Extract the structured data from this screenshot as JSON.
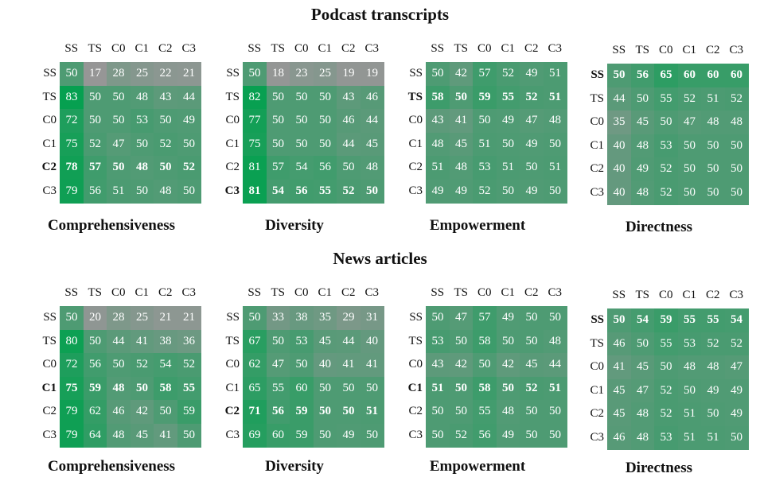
{
  "chart_data": {
    "sections": [
      {
        "title": "Podcast transcripts",
        "charts": [
          {
            "type": "heatmap",
            "title": "Comprehensiveness",
            "labels": [
              "SS",
              "TS",
              "C0",
              "C1",
              "C2",
              "C3"
            ],
            "bold_row": 4,
            "values": [
              [
                50,
                17,
                28,
                25,
                22,
                21
              ],
              [
                83,
                50,
                50,
                48,
                43,
                44
              ],
              [
                72,
                50,
                50,
                53,
                50,
                49
              ],
              [
                75,
                52,
                47,
                50,
                52,
                50
              ],
              [
                78,
                57,
                50,
                48,
                50,
                52
              ],
              [
                79,
                56,
                51,
                50,
                48,
                50
              ]
            ]
          },
          {
            "type": "heatmap",
            "title": "Diversity",
            "labels": [
              "SS",
              "TS",
              "C0",
              "C1",
              "C2",
              "C3"
            ],
            "bold_row": 5,
            "values": [
              [
                50,
                18,
                23,
                25,
                19,
                19
              ],
              [
                82,
                50,
                50,
                50,
                43,
                46
              ],
              [
                77,
                50,
                50,
                50,
                46,
                44
              ],
              [
                75,
                50,
                50,
                50,
                44,
                45
              ],
              [
                81,
                57,
                54,
                56,
                50,
                48
              ],
              [
                81,
                54,
                56,
                55,
                52,
                50
              ]
            ]
          },
          {
            "type": "heatmap",
            "title": "Empowerment",
            "labels": [
              "SS",
              "TS",
              "C0",
              "C1",
              "C2",
              "C3"
            ],
            "bold_row": 1,
            "values": [
              [
                50,
                42,
                57,
                52,
                49,
                51
              ],
              [
                58,
                50,
                59,
                55,
                52,
                51
              ],
              [
                43,
                41,
                50,
                49,
                47,
                48
              ],
              [
                48,
                45,
                51,
                50,
                49,
                50
              ],
              [
                51,
                48,
                53,
                51,
                50,
                51
              ],
              [
                49,
                49,
                52,
                50,
                49,
                50
              ]
            ]
          },
          {
            "type": "heatmap",
            "title": "Directness",
            "labels": [
              "SS",
              "TS",
              "C0",
              "C1",
              "C2",
              "C3"
            ],
            "bold_row": 0,
            "values": [
              [
                50,
                56,
                65,
                60,
                60,
                60
              ],
              [
                44,
                50,
                55,
                52,
                51,
                52
              ],
              [
                35,
                45,
                50,
                47,
                48,
                48
              ],
              [
                40,
                48,
                53,
                50,
                50,
                50
              ],
              [
                40,
                49,
                52,
                50,
                50,
                50
              ],
              [
                40,
                48,
                52,
                50,
                50,
                50
              ]
            ]
          }
        ]
      },
      {
        "title": "News articles",
        "charts": [
          {
            "type": "heatmap",
            "title": "Comprehensiveness",
            "labels": [
              "SS",
              "TS",
              "C0",
              "C1",
              "C2",
              "C3"
            ],
            "bold_row": 3,
            "values": [
              [
                50,
                20,
                28,
                25,
                21,
                21
              ],
              [
                80,
                50,
                44,
                41,
                38,
                36
              ],
              [
                72,
                56,
                50,
                52,
                54,
                52
              ],
              [
                75,
                59,
                48,
                50,
                58,
                55
              ],
              [
                79,
                62,
                46,
                42,
                50,
                59
              ],
              [
                79,
                64,
                48,
                45,
                41,
                50
              ]
            ]
          },
          {
            "type": "heatmap",
            "title": "Diversity",
            "labels": [
              "SS",
              "TS",
              "C0",
              "C1",
              "C2",
              "C3"
            ],
            "bold_row": 4,
            "values": [
              [
                50,
                33,
                38,
                35,
                29,
                31
              ],
              [
                67,
                50,
                53,
                45,
                44,
                40
              ],
              [
                62,
                47,
                50,
                40,
                41,
                41
              ],
              [
                65,
                55,
                60,
                50,
                50,
                50
              ],
              [
                71,
                56,
                59,
                50,
                50,
                51
              ],
              [
                69,
                60,
                59,
                50,
                49,
                50
              ]
            ]
          },
          {
            "type": "heatmap",
            "title": "Empowerment",
            "labels": [
              "SS",
              "TS",
              "C0",
              "C1",
              "C2",
              "C3"
            ],
            "bold_row": 3,
            "values": [
              [
                50,
                47,
                57,
                49,
                50,
                50
              ],
              [
                53,
                50,
                58,
                50,
                50,
                48
              ],
              [
                43,
                42,
                50,
                42,
                45,
                44
              ],
              [
                51,
                50,
                58,
                50,
                52,
                51
              ],
              [
                50,
                50,
                55,
                48,
                50,
                50
              ],
              [
                50,
                52,
                56,
                49,
                50,
                50
              ]
            ]
          },
          {
            "type": "heatmap",
            "title": "Directness",
            "labels": [
              "SS",
              "TS",
              "C0",
              "C1",
              "C2",
              "C3"
            ],
            "bold_row": 0,
            "values": [
              [
                50,
                54,
                59,
                55,
                55,
                54
              ],
              [
                46,
                50,
                55,
                53,
                52,
                52
              ],
              [
                41,
                45,
                50,
                48,
                48,
                47
              ],
              [
                45,
                47,
                52,
                50,
                49,
                49
              ],
              [
                45,
                48,
                52,
                51,
                50,
                49
              ],
              [
                46,
                48,
                53,
                51,
                51,
                50
              ]
            ]
          }
        ]
      }
    ]
  }
}
